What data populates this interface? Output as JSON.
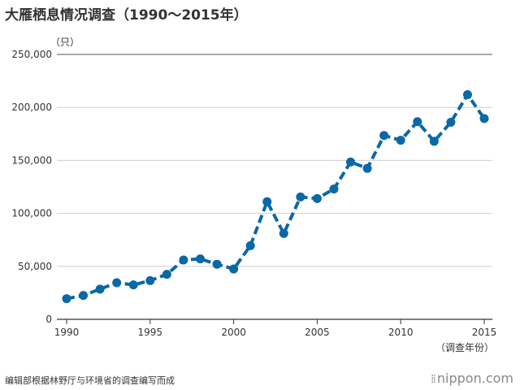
{
  "chart_data": {
    "type": "line",
    "title": "大雁栖息情况调查（1990～2015年）",
    "ylabel": "（只）",
    "xlabel": "（调查年份）",
    "ylim": [
      0,
      250000
    ],
    "yticks": [
      0,
      50000,
      100000,
      150000,
      200000,
      250000
    ],
    "ytick_labels": [
      "0",
      "50,000",
      "100,000",
      "150,000",
      "200,000",
      "250,000"
    ],
    "xlim": [
      1990,
      2015
    ],
    "xticks": [
      1990,
      1995,
      2000,
      2005,
      2010,
      2015
    ],
    "xtick_labels": [
      "1990",
      "1995",
      "2000",
      "2005",
      "2010",
      "2015"
    ],
    "grid": true,
    "legend": "none",
    "line_color": "#0a68a6",
    "x": [
      1990,
      1991,
      1992,
      1993,
      1994,
      1995,
      1996,
      1997,
      1998,
      1999,
      2000,
      2001,
      2002,
      2003,
      2004,
      2005,
      2006,
      2007,
      2008,
      2009,
      2010,
      2011,
      2012,
      2013,
      2014,
      2015
    ],
    "values": [
      19500,
      22500,
      28500,
      34500,
      32500,
      36500,
      42500,
      56000,
      57000,
      52000,
      47500,
      69500,
      111000,
      81000,
      115500,
      114000,
      123000,
      148500,
      142500,
      173500,
      169000,
      186500,
      168000,
      186000,
      212000,
      189500
    ]
  },
  "footer": {
    "source": "编辑部根据林野厅与环境省的调查编写而成",
    "brand": "nippon.com",
    "brand_icon": "dots-logo-icon"
  }
}
